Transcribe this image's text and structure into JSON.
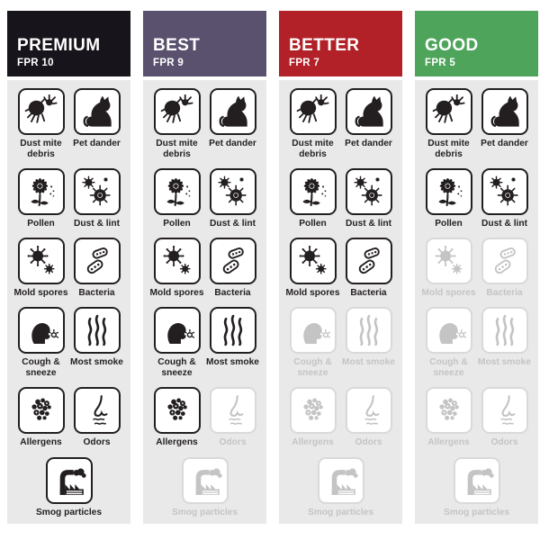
{
  "colors": {
    "header_text": "#ffffff",
    "panel_bg": "#e9e9e9",
    "tile_bg": "#ffffff",
    "active": "#231f20",
    "inactive": "#c4c4c4",
    "inactive_border": "#d9d9d9"
  },
  "columns": [
    {
      "tier": "PREMIUM",
      "fpr": "FPR 10",
      "header_color": "#18141b",
      "items": [
        {
          "label": "Dust mite\ndebris",
          "icon": "dust-mite-icon",
          "active": true
        },
        {
          "label": "Pet dander",
          "icon": "cat-icon",
          "active": true
        },
        {
          "label": "Pollen",
          "icon": "pollen-flower-icon",
          "active": true
        },
        {
          "label": "Dust & lint",
          "icon": "dust-lint-icon",
          "active": true
        },
        {
          "label": "Mold spores",
          "icon": "mold-spores-icon",
          "active": true
        },
        {
          "label": "Bacteria",
          "icon": "bacteria-icon",
          "active": true
        },
        {
          "label": "Cough &\nsneeze",
          "icon": "cough-sneeze-icon",
          "active": true
        },
        {
          "label": "Most smoke",
          "icon": "smoke-icon",
          "active": true
        },
        {
          "label": "Allergens",
          "icon": "allergens-icon",
          "active": true
        },
        {
          "label": "Odors",
          "icon": "odors-nose-icon",
          "active": true
        },
        {
          "label": "Smog particles",
          "icon": "smog-factory-icon",
          "active": true
        }
      ]
    },
    {
      "tier": "BEST",
      "fpr": "FPR 9",
      "header_color": "#5a516f",
      "items": [
        {
          "label": "Dust mite\ndebris",
          "icon": "dust-mite-icon",
          "active": true
        },
        {
          "label": "Pet dander",
          "icon": "cat-icon",
          "active": true
        },
        {
          "label": "Pollen",
          "icon": "pollen-flower-icon",
          "active": true
        },
        {
          "label": "Dust & lint",
          "icon": "dust-lint-icon",
          "active": true
        },
        {
          "label": "Mold spores",
          "icon": "mold-spores-icon",
          "active": true
        },
        {
          "label": "Bacteria",
          "icon": "bacteria-icon",
          "active": true
        },
        {
          "label": "Cough &\nsneeze",
          "icon": "cough-sneeze-icon",
          "active": true
        },
        {
          "label": "Most smoke",
          "icon": "smoke-icon",
          "active": true
        },
        {
          "label": "Allergens",
          "icon": "allergens-icon",
          "active": true
        },
        {
          "label": "Odors",
          "icon": "odors-nose-icon",
          "active": false
        },
        {
          "label": "Smog particles",
          "icon": "smog-factory-icon",
          "active": false
        }
      ]
    },
    {
      "tier": "BETTER",
      "fpr": "FPR 7",
      "header_color": "#b12127",
      "items": [
        {
          "label": "Dust mite\ndebris",
          "icon": "dust-mite-icon",
          "active": true
        },
        {
          "label": "Pet dander",
          "icon": "cat-icon",
          "active": true
        },
        {
          "label": "Pollen",
          "icon": "pollen-flower-icon",
          "active": true
        },
        {
          "label": "Dust & lint",
          "icon": "dust-lint-icon",
          "active": true
        },
        {
          "label": "Mold spores",
          "icon": "mold-spores-icon",
          "active": true
        },
        {
          "label": "Bacteria",
          "icon": "bacteria-icon",
          "active": true
        },
        {
          "label": "Cough &\nsneeze",
          "icon": "cough-sneeze-icon",
          "active": false
        },
        {
          "label": "Most smoke",
          "icon": "smoke-icon",
          "active": false
        },
        {
          "label": "Allergens",
          "icon": "allergens-icon",
          "active": false
        },
        {
          "label": "Odors",
          "icon": "odors-nose-icon",
          "active": false
        },
        {
          "label": "Smog particles",
          "icon": "smog-factory-icon",
          "active": false
        }
      ]
    },
    {
      "tier": "GOOD",
      "fpr": "FPR 5",
      "header_color": "#4fa45c",
      "items": [
        {
          "label": "Dust mite\ndebris",
          "icon": "dust-mite-icon",
          "active": true
        },
        {
          "label": "Pet dander",
          "icon": "cat-icon",
          "active": true
        },
        {
          "label": "Pollen",
          "icon": "pollen-flower-icon",
          "active": true
        },
        {
          "label": "Dust & lint",
          "icon": "dust-lint-icon",
          "active": true
        },
        {
          "label": "Mold spores",
          "icon": "mold-spores-icon",
          "active": false
        },
        {
          "label": "Bacteria",
          "icon": "bacteria-icon",
          "active": false
        },
        {
          "label": "Cough &\nsneeze",
          "icon": "cough-sneeze-icon",
          "active": false
        },
        {
          "label": "Most smoke",
          "icon": "smoke-icon",
          "active": false
        },
        {
          "label": "Allergens",
          "icon": "allergens-icon",
          "active": false
        },
        {
          "label": "Odors",
          "icon": "odors-nose-icon",
          "active": false
        },
        {
          "label": "Smog particles",
          "icon": "smog-factory-icon",
          "active": false
        }
      ]
    }
  ]
}
